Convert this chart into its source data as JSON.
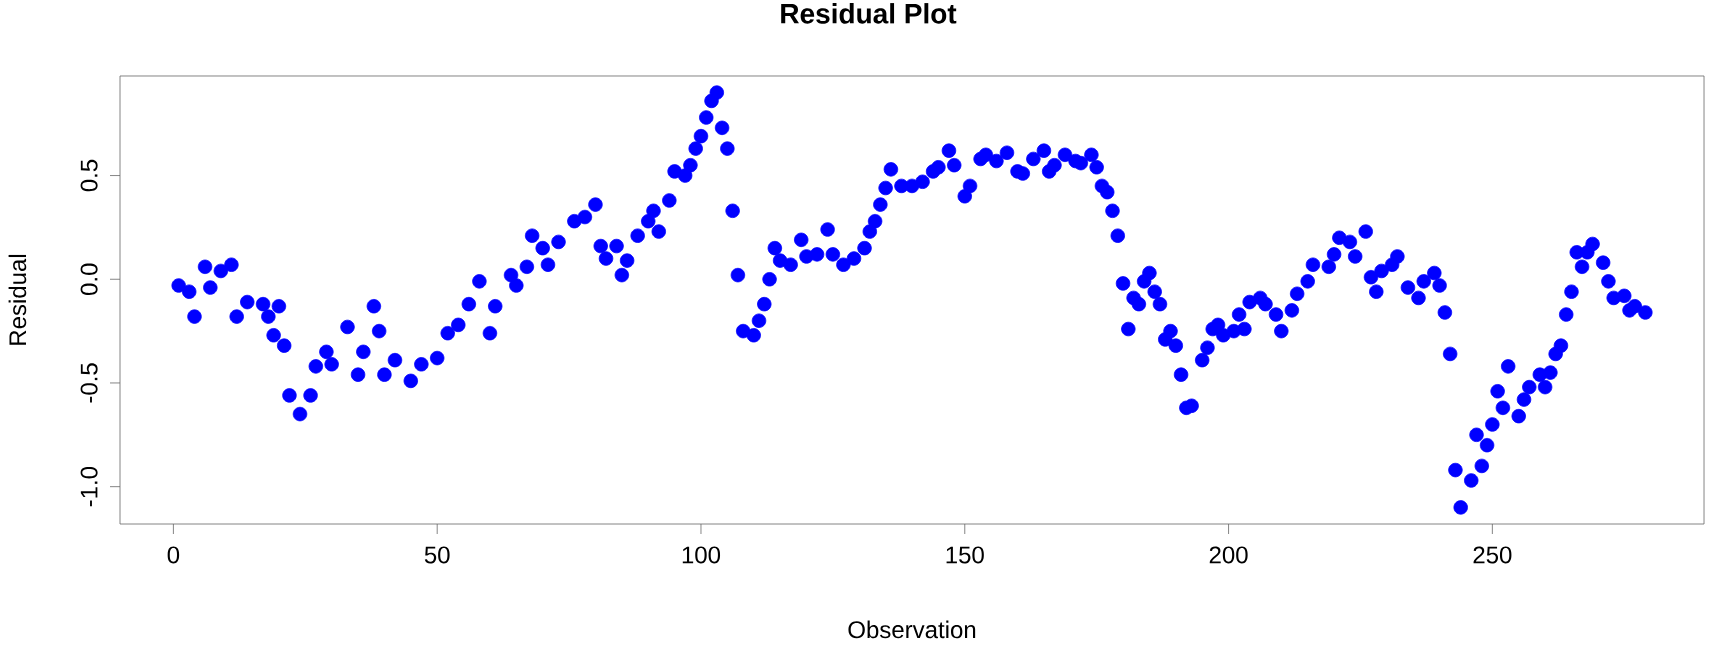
{
  "chart_data": {
    "type": "scatter",
    "title": "Residual Plot",
    "xlabel": "Observation",
    "ylabel": "Residual",
    "x": [
      1,
      3,
      4,
      6,
      7,
      9,
      11,
      12,
      14,
      17,
      18,
      19,
      20,
      21,
      22,
      24,
      26,
      27,
      29,
      30,
      33,
      35,
      36,
      38,
      39,
      40,
      42,
      45,
      47,
      50,
      52,
      54,
      56,
      58,
      60,
      61,
      64,
      65,
      67,
      68,
      70,
      71,
      73,
      76,
      78,
      80,
      81,
      82,
      84,
      85,
      86,
      88,
      90,
      91,
      92,
      94,
      95,
      97,
      98,
      99,
      100,
      101,
      102,
      103,
      104,
      105,
      106,
      107,
      108,
      110,
      111,
      112,
      113,
      114,
      115,
      117,
      119,
      120,
      122,
      124,
      125,
      127,
      129,
      131,
      132,
      133,
      134,
      135,
      136,
      138,
      140,
      142,
      144,
      145,
      147,
      148,
      150,
      151,
      153,
      154,
      156,
      158,
      160,
      161,
      163,
      165,
      166,
      167,
      169,
      171,
      172,
      174,
      175,
      176,
      177,
      178,
      179,
      180,
      181,
      182,
      183,
      184,
      185,
      186,
      187,
      188,
      189,
      190,
      191,
      192,
      193,
      195,
      196,
      197,
      198,
      199,
      201,
      202,
      203,
      204,
      206,
      207,
      209,
      210,
      212,
      213,
      215,
      216,
      219,
      220,
      221,
      223,
      224,
      226,
      227,
      228,
      229,
      231,
      232,
      234,
      236,
      237,
      239,
      240,
      241,
      242,
      243,
      244,
      246,
      247,
      248,
      249,
      250,
      251,
      252,
      253,
      255,
      256,
      257,
      259,
      260,
      261,
      262,
      263,
      264,
      265,
      266,
      267,
      268,
      269,
      271,
      272,
      273,
      275,
      276,
      277,
      279
    ],
    "values": [
      -0.03,
      -0.06,
      -0.18,
      0.06,
      -0.04,
      0.04,
      0.07,
      -0.18,
      -0.11,
      -0.12,
      -0.18,
      -0.27,
      -0.13,
      -0.32,
      -0.56,
      -0.65,
      -0.56,
      -0.42,
      -0.35,
      -0.41,
      -0.23,
      -0.46,
      -0.35,
      -0.13,
      -0.25,
      -0.46,
      -0.39,
      -0.49,
      -0.41,
      -0.38,
      -0.26,
      -0.22,
      -0.12,
      -0.01,
      -0.26,
      -0.13,
      0.02,
      -0.03,
      0.06,
      0.21,
      0.15,
      0.07,
      0.18,
      0.28,
      0.3,
      0.36,
      0.16,
      0.1,
      0.16,
      0.02,
      0.09,
      0.21,
      0.28,
      0.33,
      0.23,
      0.38,
      0.52,
      0.5,
      0.55,
      0.63,
      0.69,
      0.78,
      0.86,
      0.9,
      0.73,
      0.63,
      0.33,
      0.02,
      -0.25,
      -0.27,
      -0.2,
      -0.12,
      0.0,
      0.15,
      0.09,
      0.07,
      0.19,
      0.11,
      0.12,
      0.24,
      0.12,
      0.07,
      0.1,
      0.15,
      0.23,
      0.28,
      0.36,
      0.44,
      0.53,
      0.45,
      0.45,
      0.47,
      0.52,
      0.54,
      0.62,
      0.55,
      0.4,
      0.45,
      0.58,
      0.6,
      0.57,
      0.61,
      0.52,
      0.51,
      0.58,
      0.62,
      0.52,
      0.55,
      0.6,
      0.57,
      0.56,
      0.6,
      0.54,
      0.45,
      0.42,
      0.33,
      0.21,
      -0.02,
      -0.24,
      -0.09,
      -0.12,
      -0.01,
      0.03,
      -0.06,
      -0.12,
      -0.29,
      -0.25,
      -0.32,
      -0.46,
      -0.62,
      -0.61,
      -0.39,
      -0.33,
      -0.24,
      -0.22,
      -0.27,
      -0.25,
      -0.17,
      -0.24,
      -0.11,
      -0.09,
      -0.12,
      -0.17,
      -0.25,
      -0.15,
      -0.07,
      -0.01,
      0.07,
      0.06,
      0.12,
      0.2,
      0.18,
      0.11,
      0.23,
      0.01,
      -0.06,
      0.04,
      0.07,
      0.11,
      -0.04,
      -0.09,
      -0.01,
      0.03,
      -0.03,
      -0.16,
      -0.36,
      -0.92,
      -1.1,
      -0.97,
      -0.75,
      -0.9,
      -0.8,
      -0.7,
      -0.54,
      -0.62,
      -0.42,
      -0.66,
      -0.58,
      -0.52,
      -0.46,
      -0.52,
      -0.45,
      -0.36,
      -0.32,
      -0.17,
      -0.06,
      0.13,
      0.06,
      0.13,
      0.17,
      0.08,
      -0.01,
      -0.09,
      -0.08,
      -0.15,
      -0.13,
      -0.16
    ],
    "color": "#0000ff",
    "marker": "circle",
    "xlim": [
      -10.12,
      290.12
    ],
    "ylim": [
      -1.18,
      0.98
    ],
    "xticks": [
      0,
      50,
      100,
      150,
      200,
      250
    ],
    "yticks": [
      {
        "value": -1,
        "label": "-1.0"
      },
      -0.5,
      {
        "value": 0,
        "label": "0.0"
      },
      0.5
    ]
  }
}
